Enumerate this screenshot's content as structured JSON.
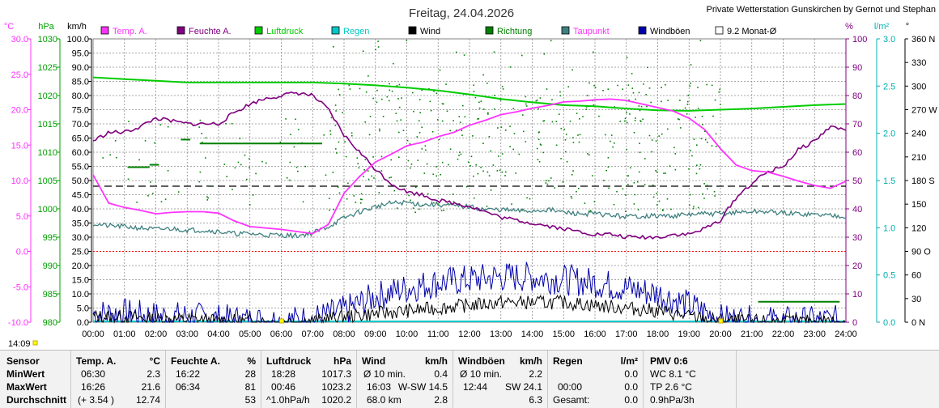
{
  "header": {
    "title": "Freitag, 24.04.2026",
    "station": "Private Wetterstation Gunskirchen by Gernot und Stephan"
  },
  "time_badge": "14:09",
  "colors": {
    "temp": "#ff33ff",
    "humidity": "#800080",
    "pressure": "#00cc00",
    "rain": "#00c8c8",
    "wind": "#000000",
    "direction": "#008000",
    "dewpoint": "#408080",
    "gust": "#0000aa",
    "monthly_avg": "#000000",
    "temp_axis": "#ff33ff",
    "pressure_axis": "#00a000",
    "humidity_axis": "#800080",
    "rain_axis": "#00b0b0"
  },
  "axes": {
    "temp_unit": "°C",
    "temp_ticks": [
      "30.0",
      "25.0",
      "20.0",
      "15.0",
      "10.0",
      "5.0",
      "0.0",
      "-5.0",
      "-10.0"
    ],
    "pressure_unit": "hPa",
    "pressure_ticks": [
      "1030",
      "1025",
      "1020",
      "1015",
      "1010",
      "1005",
      "1000",
      "995",
      "990",
      "985",
      "980"
    ],
    "wind_unit": "km/h",
    "wind_ticks": [
      "100.0",
      "95.0",
      "90.0",
      "85.0",
      "80.0",
      "75.0",
      "70.0",
      "65.0",
      "60.0",
      "55.0",
      "50.0",
      "45.0",
      "40.0",
      "35.0",
      "30.0",
      "25.0",
      "20.0",
      "15.0",
      "10.0",
      "5.0",
      "0.0"
    ],
    "humidity_unit": "%",
    "humidity_ticks": [
      "100",
      "90",
      "80",
      "70",
      "60",
      "50",
      "40",
      "30",
      "20",
      "10",
      "0"
    ],
    "rain_unit": "l/m²",
    "rain_ticks": [
      "3.0",
      "2.5",
      "2.0",
      "1.5",
      "1.0",
      "0.5",
      "0.0"
    ],
    "dir_unit": "°",
    "dir_ticks": [
      "360 N",
      "330",
      "300",
      "270 W",
      "240",
      "210",
      "180 S",
      "150",
      "120",
      "90 O",
      "60",
      "30",
      "0 N"
    ],
    "time_ticks": [
      "00:00",
      "01:00",
      "02:00",
      "03:00",
      "04:00",
      "05:00",
      "06:00",
      "07:00",
      "08:00",
      "09:00",
      "10:00",
      "11:00",
      "12:00",
      "13:00",
      "14:00",
      "15:00",
      "16:00",
      "17:00",
      "18:00",
      "19:00",
      "20:00",
      "21:00",
      "22:00",
      "23:00",
      "24:00"
    ]
  },
  "chart_data": {
    "type": "line",
    "title": "Freitag, 24.04.2026",
    "x_unit": "hour",
    "x_range": [
      0,
      24
    ],
    "grid": true,
    "legend_position": "top",
    "legend": [
      "Temp. A.",
      "Feuchte A.",
      "Luftdruck",
      "Regen",
      "Wind",
      "Richtung",
      "Taupunkt",
      "Windböen",
      "9.2 Monat-Ø"
    ],
    "monthly_avg_temp": 9.2,
    "series": [
      {
        "name": "Temp. A.",
        "unit": "°C",
        "range": [
          -10,
          30
        ],
        "x": [
          0,
          0.5,
          1,
          1.5,
          2,
          2.5,
          3,
          3.5,
          4,
          4.5,
          5,
          5.5,
          6,
          6.5,
          7,
          7.5,
          8,
          8.5,
          9,
          9.5,
          10,
          10.5,
          11,
          11.5,
          12,
          12.5,
          13,
          13.5,
          14,
          14.5,
          15,
          15.5,
          16,
          16.5,
          17,
          17.5,
          18,
          18.5,
          19,
          19.5,
          20,
          20.5,
          21,
          21.5,
          22,
          22.5,
          23,
          23.5,
          24
        ],
        "values": [
          10.8,
          6.8,
          6.2,
          5.8,
          5.3,
          5.5,
          5.6,
          5.6,
          5.4,
          4.3,
          3.5,
          3.3,
          3.1,
          2.8,
          2.5,
          3.8,
          8.2,
          10.6,
          12.6,
          13.7,
          14.9,
          15.4,
          16.2,
          16.8,
          17.8,
          18.5,
          19.3,
          19.7,
          20.2,
          20.6,
          21.1,
          21.2,
          21.4,
          21.5,
          21.3,
          20.8,
          20.3,
          19.8,
          18.8,
          17.2,
          14.5,
          12.2,
          11.4,
          11.2,
          10.6,
          9.9,
          9.3,
          8.9,
          9.9
        ]
      },
      {
        "name": "Feuchte A.",
        "unit": "%",
        "range": [
          0,
          100
        ],
        "x": [
          0,
          0.5,
          1,
          1.5,
          2,
          2.5,
          3,
          3.5,
          4,
          4.5,
          5,
          5.5,
          6,
          6.5,
          7,
          7.5,
          8,
          8.5,
          9,
          9.5,
          10,
          10.5,
          11,
          11.5,
          12,
          12.5,
          13,
          13.5,
          14,
          14.5,
          15,
          15.5,
          16,
          16.5,
          17,
          17.5,
          18,
          18.5,
          19,
          19.5,
          20,
          20.5,
          21,
          21.5,
          22,
          22.5,
          23,
          23.5,
          24
        ],
        "values": [
          64,
          67,
          67,
          69,
          72,
          71,
          70,
          70,
          70,
          74,
          77,
          79,
          80,
          81,
          80,
          75,
          66,
          60,
          54,
          49,
          46,
          45,
          43,
          42,
          41,
          39,
          37,
          36,
          35,
          34,
          33,
          32,
          31,
          31,
          30,
          30,
          30,
          31,
          31,
          33,
          36,
          44,
          49,
          53,
          55,
          61,
          64,
          69,
          68
        ]
      },
      {
        "name": "Luftdruck",
        "unit": "hPa",
        "range": [
          980,
          1030
        ],
        "x": [
          0,
          1,
          2,
          3,
          4,
          5,
          6,
          7,
          8,
          9,
          10,
          11,
          12,
          13,
          14,
          15,
          16,
          17,
          18,
          19,
          20,
          21,
          22,
          23,
          24
        ],
        "values": [
          1023.2,
          1022.9,
          1022.6,
          1022.3,
          1022.3,
          1022.3,
          1022.3,
          1022.3,
          1022.1,
          1021.8,
          1021.4,
          1020.9,
          1020.2,
          1019.4,
          1018.8,
          1018.3,
          1018.1,
          1017.7,
          1017.4,
          1017.3,
          1017.5,
          1017.7,
          1018.0,
          1018.3,
          1018.5
        ]
      },
      {
        "name": "Regen",
        "unit": "l/m²",
        "range": [
          0,
          3
        ],
        "x": [
          0,
          24
        ],
        "values": [
          0,
          0
        ]
      },
      {
        "name": "Taupunkt",
        "unit": "°C",
        "range": [
          -10,
          30
        ],
        "x": [
          0,
          0.5,
          1,
          1.5,
          2,
          2.5,
          3,
          3.5,
          4,
          4.5,
          5,
          5.5,
          6,
          6.5,
          7,
          7.5,
          8,
          8.5,
          9,
          9.5,
          10,
          10.5,
          11,
          11.5,
          12,
          12.5,
          13,
          13.5,
          14,
          14.5,
          15,
          15.5,
          16,
          16.5,
          17,
          17.5,
          18,
          18.5,
          19,
          19.5,
          20,
          20.5,
          21,
          21.5,
          22,
          22.5,
          23,
          23.5,
          24
        ],
        "values": [
          3.9,
          3.6,
          3.5,
          3.3,
          3.1,
          3.2,
          3.0,
          3.0,
          2.8,
          2.5,
          2.5,
          2.3,
          2.3,
          2.2,
          2.6,
          3.5,
          4.7,
          5.6,
          6.3,
          6.8,
          6.9,
          6.6,
          6.6,
          6.4,
          6.3,
          5.9,
          5.9,
          5.7,
          5.7,
          5.9,
          5.5,
          5.3,
          5.3,
          5.1,
          4.9,
          5.0,
          5.0,
          5.0,
          5.2,
          5.3,
          5.3,
          5.5,
          5.6,
          5.6,
          5.4,
          5.3,
          5.2,
          5.1,
          5.0
        ]
      },
      {
        "name": "Wind",
        "unit": "km/h",
        "range": [
          0,
          100
        ],
        "x": [
          0,
          1,
          2,
          3,
          4,
          5,
          6,
          7,
          8,
          9,
          10,
          11,
          12,
          13,
          14,
          15,
          16,
          17,
          18,
          19,
          20,
          21,
          22,
          23,
          24
        ],
        "values": [
          2,
          2,
          1,
          1,
          0.5,
          0.3,
          0.2,
          0.4,
          2,
          3,
          4,
          5,
          6,
          7,
          7,
          7,
          6,
          5,
          4,
          2,
          0.5,
          0.3,
          0.2,
          0.2,
          0.3
        ]
      },
      {
        "name": "Windböen",
        "unit": "km/h",
        "range": [
          0,
          100
        ],
        "x": [
          0,
          1,
          2,
          3,
          4,
          5,
          6,
          7,
          8,
          9,
          10,
          11,
          12,
          13,
          14,
          15,
          16,
          17,
          18,
          19,
          20,
          21,
          22,
          23,
          24
        ],
        "values": [
          3,
          3,
          2,
          2,
          1,
          0.5,
          0.3,
          1,
          4,
          9,
          12,
          14,
          15,
          16,
          16,
          15,
          14,
          12,
          10,
          6,
          1,
          0.5,
          0.3,
          0.3,
          0.8
        ]
      },
      {
        "name": "Richtung",
        "unit": "°",
        "range": [
          0,
          360
        ],
        "segments": [
          [
            1.1,
            1.8,
            197
          ],
          [
            1.8,
            2.1,
            200
          ],
          [
            2.8,
            3.1,
            232
          ],
          [
            3.4,
            6.5,
            227
          ],
          [
            6.5,
            7.3,
            227
          ],
          [
            21.2,
            23.8,
            26
          ]
        ]
      },
      {
        "name": "9.2 Monat-Ø",
        "unit": "°C",
        "range": [
          -10,
          30
        ],
        "x": [
          0,
          24
        ],
        "values": [
          9.2,
          9.2
        ]
      }
    ]
  },
  "stats": {
    "sensor": {
      "title": "Sensor",
      "rows": [
        "MinWert",
        "MaxWert",
        "Durchschnitt"
      ]
    },
    "temp": {
      "title": "Temp. A.",
      "unit": "°C",
      "rows": [
        {
          "a": "06:30",
          "b": "2.3"
        },
        {
          "a": "16:26",
          "b": "21.6"
        },
        {
          "a": "(+ 3.54 )",
          "b": "12.74"
        }
      ]
    },
    "hum": {
      "title": "Feuchte A.",
      "unit": "%",
      "rows": [
        {
          "a": "16:22",
          "b": "28"
        },
        {
          "a": "06:34",
          "b": "81"
        },
        {
          "a": "",
          "b": "53"
        }
      ]
    },
    "press": {
      "title": "Luftdruck",
      "unit": "hPa",
      "rows": [
        {
          "a": "18:28",
          "b": "1017.3"
        },
        {
          "a": "00:46",
          "b": "1023.2"
        },
        {
          "a": "^1.0hPa/h",
          "b": "1020.2"
        }
      ]
    },
    "wind": {
      "title": "Wind",
      "unit": "km/h",
      "rows": [
        {
          "a": "Ø 10 min.",
          "m": "",
          "b": "0.4"
        },
        {
          "a": "16:03",
          "m": "W-SW 14.5",
          "b": ""
        },
        {
          "a": "68.0 km",
          "m": "",
          "b": "2.8"
        }
      ]
    },
    "gust": {
      "title": "Windböen",
      "unit": "km/h",
      "rows": [
        {
          "a": "Ø 10 min.",
          "m": "",
          "b": "2.2"
        },
        {
          "a": "12:44",
          "m": "SW 24.1",
          "b": ""
        },
        {
          "a": "",
          "m": "",
          "b": "6.3"
        }
      ]
    },
    "rain": {
      "title": "Regen",
      "unit": "l/m²",
      "rows": [
        {
          "a": "",
          "b": "0.0"
        },
        {
          "a": "00:00",
          "b": "0.0"
        },
        {
          "a": "Gesamt:",
          "b": "0.0"
        }
      ]
    },
    "pmv": {
      "title": "PMV 0:6",
      "rows": [
        "WC 8.1 °C",
        "TP 2.6 °C",
        "0.9hPa/3h"
      ]
    }
  }
}
